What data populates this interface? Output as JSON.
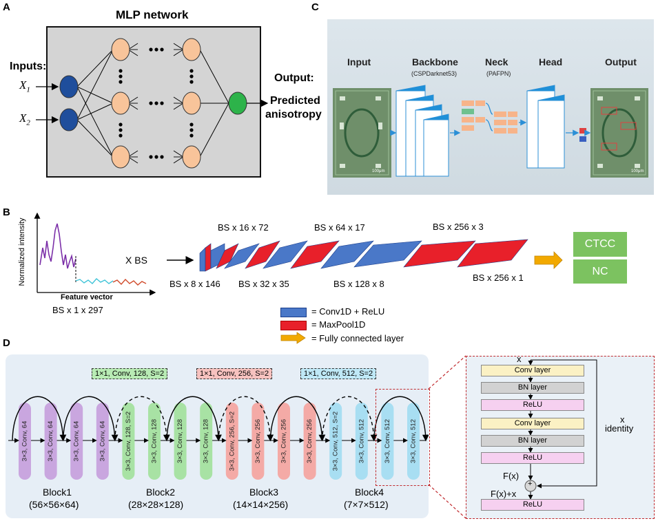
{
  "panel_labels": {
    "a": "A",
    "b": "B",
    "c": "C",
    "d": "D"
  },
  "panel_a": {
    "title": "MLP network",
    "inputs_label": "Inputs:",
    "x1": "X",
    "x1_sub": "1",
    "x2": "X",
    "x2_sub": "2",
    "output_label": "Output:",
    "output_line1": "Predicted",
    "output_line2": "anisotropy",
    "colors": {
      "input_node": "#1f4e9c",
      "hidden_node": "#f8c49a",
      "output_node": "#2db34a",
      "box": "#d4d4d4"
    }
  },
  "panel_c": {
    "stages": [
      "Input",
      "Backbone",
      "Neck",
      "Head",
      "Output"
    ],
    "backbone_sub": "(CSPDarknet53)",
    "neck_sub": "(PAFPN)",
    "scale_label": "100μm"
  },
  "panel_b": {
    "y_axis": "Normalized intensity",
    "x_axis": "Feature vector",
    "input_shape": "BS x 1 x 297",
    "x_bs": "X BS",
    "top_labels": [
      "BS x 16 x 72",
      "BS x 64 x 17",
      "BS x 256 x 3"
    ],
    "bottom_labels": [
      "BS x 8 x 146",
      "BS x 32 x 35",
      "BS x 128 x 8",
      "BS x 256 x 1"
    ],
    "outputs": [
      "CTCC",
      "NC"
    ],
    "legend": [
      {
        "label": "= Conv1D + ReLU",
        "color": "#4a78c8"
      },
      {
        "label": "= MaxPool1D",
        "color": "#e8202a"
      },
      {
        "label": "= Fully connected layer",
        "color": "#f2a900"
      }
    ]
  },
  "panel_d": {
    "shortcut_labels": [
      "1×1, Conv, 128, S=2",
      "1×1, Conv, 256, S=2",
      "1×1, Conv, 512, S=2"
    ],
    "blocks": [
      {
        "name": "Block1",
        "shape": "(56×56×64)",
        "layers": [
          "3×3, Conv, 64",
          "3×3, Conv, 64",
          "3×3, Conv, 64",
          "3×3, Conv, 64"
        ],
        "color": "#c9a6df"
      },
      {
        "name": "Block2",
        "shape": "(28×28×128)",
        "layers": [
          "3×3, Conv, 128, S=2",
          "3×3, Conv, 128",
          "3×3, Conv, 128",
          "3×3, Conv, 128"
        ],
        "color": "#a8e2a4"
      },
      {
        "name": "Block3",
        "shape": "(14×14×256)",
        "layers": [
          "3×3, Conv, 256, S=2",
          "3×3, Conv, 256",
          "3×3, Conv, 256",
          "3×3, Conv, 256"
        ],
        "color": "#f4aaa6"
      },
      {
        "name": "Block4",
        "shape": "(7×7×512)",
        "layers": [
          "3×3, Conv, 512, S=2",
          "3×3, Conv, 512",
          "3×3, Conv, 512",
          "3×3, Conv, 512"
        ],
        "color": "#a8def2"
      }
    ],
    "residual": {
      "x_label": "x",
      "layers": [
        "Conv layer",
        "BN layer",
        "ReLU",
        "Conv layer",
        "BN layer",
        "ReLU"
      ],
      "fx_label": "F(x)",
      "plus": "+",
      "fx_plus_x": "F(x)+x",
      "final": "ReLU",
      "identity_x": "x",
      "identity_label": "identity"
    }
  }
}
